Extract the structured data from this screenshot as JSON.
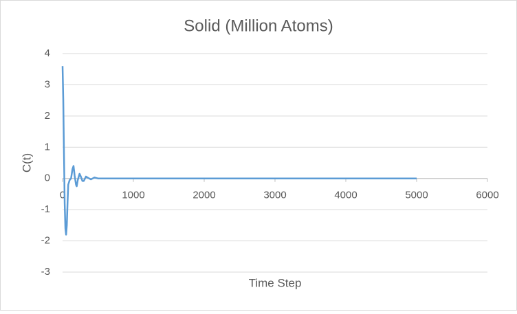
{
  "chart_data": {
    "type": "line",
    "title": "Solid (Million Atoms)",
    "x_label": "Time Step",
    "y_label": "C(t)",
    "series": [
      {
        "name": "C(t)",
        "color": "#5b9bd5",
        "x": [
          0,
          10,
          20,
          30,
          40,
          50,
          60,
          70,
          80,
          100,
          120,
          140,
          155,
          170,
          190,
          200,
          215,
          240,
          260,
          280,
          300,
          330,
          360,
          400,
          450,
          500,
          600,
          800,
          1000,
          2000,
          3000,
          4000,
          5000
        ],
        "values": [
          3.6,
          2.5,
          0.8,
          -0.8,
          -1.6,
          -1.8,
          -1.5,
          -0.8,
          -0.2,
          -0.05,
          0,
          0.3,
          0.4,
          0.1,
          -0.2,
          -0.25,
          -0.05,
          0.15,
          0.05,
          -0.08,
          -0.08,
          0.06,
          0.02,
          -0.03,
          0.03,
          0,
          0,
          0,
          0,
          0,
          0,
          0,
          0
        ]
      }
    ],
    "xlim": [
      0,
      6000
    ],
    "xticks": [
      0,
      1000,
      2000,
      3000,
      4000,
      5000,
      6000
    ],
    "ylim": [
      -3,
      4
    ],
    "yticks": [
      -3,
      -2,
      -1,
      0,
      1,
      2,
      3,
      4
    ],
    "grid": true
  }
}
